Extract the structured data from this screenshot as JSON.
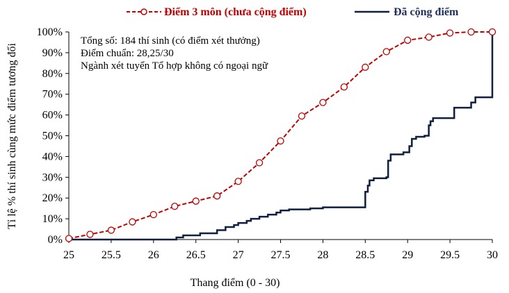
{
  "chart_data": {
    "type": "line",
    "title": "",
    "xlabel": "Thang điểm (0 - 30)",
    "ylabel": "Tỉ lệ % thí sinh cùng mức điểm tương đối",
    "xlim": [
      25,
      30
    ],
    "ylim": [
      0,
      100
    ],
    "x_ticks": [
      "25",
      "25.5",
      "26",
      "26.5",
      "27",
      "27.5",
      "28",
      "28.5",
      "29",
      "29.5",
      "30"
    ],
    "y_ticks": [
      "0%",
      "10%",
      "20%",
      "30%",
      "40%",
      "50%",
      "60%",
      "70%",
      "80%",
      "90%",
      "100%"
    ],
    "grid": false,
    "legend_position": "top",
    "annotations": [
      "Tổng số: 184 thí sinh  (có điểm xét thưởng)",
      "Điểm chuẩn: 28,25/30",
      "Ngành xét tuyển Tổ hợp không có ngoại ngữ"
    ],
    "series": [
      {
        "name": "Điểm 3 môn (chưa cộng điểm)",
        "color": "#C00000",
        "style": "dashed-with-circle-markers",
        "x": [
          25,
          25.25,
          25.5,
          25.75,
          26,
          26.25,
          26.5,
          26.75,
          27,
          27.25,
          27.5,
          27.75,
          28,
          28.25,
          28.5,
          28.75,
          29,
          29.25,
          29.5,
          29.75,
          30
        ],
        "y": [
          0.5,
          2.5,
          4.5,
          8.5,
          12,
          16,
          18.5,
          21,
          28,
          37,
          47.5,
          59.5,
          66,
          73.5,
          83,
          90.5,
          96,
          97.5,
          99.5,
          100,
          100
        ]
      },
      {
        "name": "Đã cộng điểm",
        "color": "#0F1F3D",
        "style": "step",
        "x": [
          25,
          26.25,
          26.27,
          26.35,
          26.55,
          26.75,
          26.85,
          26.95,
          27.0,
          27.1,
          27.15,
          27.25,
          27.35,
          27.45,
          27.5,
          27.6,
          27.8,
          27.85,
          28.0,
          28.2,
          28.49,
          28.5,
          28.53,
          28.55,
          28.6,
          28.75,
          28.77,
          28.8,
          28.95,
          29.0,
          29.02,
          29.05,
          29.1,
          29.2,
          29.25,
          29.27,
          29.3,
          29.35,
          29.5,
          29.55,
          29.7,
          29.75,
          29.8,
          29.98,
          30
        ],
        "y": [
          0,
          0,
          1,
          2,
          3,
          4.5,
          6,
          7,
          8,
          9,
          10,
          11,
          12,
          13,
          14,
          14.5,
          14.5,
          15,
          15.5,
          15.5,
          15.5,
          23,
          26,
          28.5,
          29.5,
          30,
          38,
          41,
          42,
          42,
          45,
          48.5,
          49.5,
          50,
          55,
          57,
          58.5,
          58.5,
          58.5,
          63.5,
          63.5,
          66,
          68.5,
          68.5,
          100
        ]
      }
    ]
  }
}
